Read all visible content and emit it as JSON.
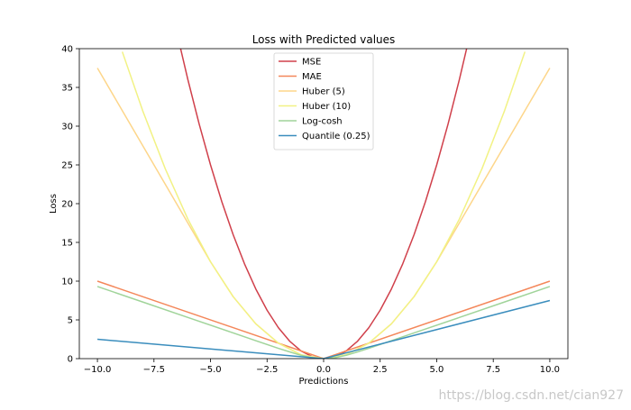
{
  "chart_data": {
    "type": "line",
    "title": "Loss with Predicted values",
    "xlabel": "Predictions",
    "ylabel": "Loss",
    "xlim": [
      -10.8,
      10.8
    ],
    "ylim": [
      0,
      40
    ],
    "xticks": [
      -10.0,
      -7.5,
      -5.0,
      -2.5,
      0.0,
      2.5,
      5.0,
      7.5,
      10.0
    ],
    "xtick_labels": [
      "−10.0",
      "−7.5",
      "−5.0",
      "−2.5",
      "0.0",
      "2.5",
      "5.0",
      "7.5",
      "10.0"
    ],
    "yticks": [
      0,
      5,
      10,
      15,
      20,
      25,
      30,
      35,
      40
    ],
    "ytick_labels": [
      "0",
      "5",
      "10",
      "15",
      "20",
      "25",
      "30",
      "35",
      "40"
    ],
    "grid": false,
    "legend_position": "top-center",
    "series": [
      {
        "name": "MSE",
        "color": "#d0404b",
        "x": [
          -6.4,
          -6.0,
          -5.5,
          -5.0,
          -4.5,
          -4.0,
          -3.5,
          -3.0,
          -2.5,
          -2.0,
          -1.5,
          -1.0,
          -0.5,
          0.0,
          0.5,
          1.0,
          1.5,
          2.0,
          2.5,
          3.0,
          3.5,
          4.0,
          4.5,
          5.0,
          5.5,
          6.0,
          6.4
        ],
        "y": [
          40.96,
          36.0,
          30.25,
          25.0,
          20.25,
          16.0,
          12.25,
          9.0,
          6.25,
          4.0,
          2.25,
          1.0,
          0.25,
          0.0,
          0.25,
          1.0,
          2.25,
          4.0,
          6.25,
          9.0,
          12.25,
          16.0,
          20.25,
          25.0,
          30.25,
          36.0,
          40.96
        ]
      },
      {
        "name": "MAE",
        "color": "#f4875a",
        "x": [
          -10.0,
          0.0,
          10.0
        ],
        "y": [
          10.0,
          0.0,
          10.0
        ]
      },
      {
        "name": "Huber (5)",
        "color": "#fdd68a",
        "x": [
          -10.0,
          -9.0,
          -8.0,
          -7.0,
          -6.0,
          -5.0,
          -4.0,
          -3.0,
          -2.0,
          -1.0,
          0.0,
          1.0,
          2.0,
          3.0,
          4.0,
          5.0,
          6.0,
          7.0,
          8.0,
          9.0,
          10.0
        ],
        "y": [
          37.5,
          32.5,
          27.5,
          22.5,
          17.5,
          12.5,
          8.0,
          4.5,
          2.0,
          0.5,
          0.0,
          0.5,
          2.0,
          4.5,
          8.0,
          12.5,
          17.5,
          22.5,
          27.5,
          32.5,
          37.5
        ]
      },
      {
        "name": "Huber (10)",
        "color": "#f2f284",
        "x": [
          -8.9,
          -8.0,
          -7.0,
          -6.0,
          -5.0,
          -4.0,
          -3.0,
          -2.0,
          -1.0,
          0.0,
          1.0,
          2.0,
          3.0,
          4.0,
          5.0,
          6.0,
          7.0,
          8.0,
          8.9
        ],
        "y": [
          39.6,
          32.0,
          24.5,
          18.0,
          12.5,
          8.0,
          4.5,
          2.0,
          0.5,
          0.0,
          0.5,
          2.0,
          4.5,
          8.0,
          12.5,
          18.0,
          24.5,
          32.0,
          39.6
        ]
      },
      {
        "name": "Log-cosh",
        "color": "#a0d49a",
        "x": [
          -10.0,
          -8.0,
          -6.0,
          -4.0,
          -3.0,
          -2.0,
          -1.5,
          -1.0,
          -0.5,
          0.0,
          0.5,
          1.0,
          1.5,
          2.0,
          3.0,
          4.0,
          6.0,
          8.0,
          10.0
        ],
        "y": [
          9.31,
          7.31,
          5.31,
          3.32,
          2.32,
          1.33,
          0.87,
          0.43,
          0.12,
          0.0,
          0.12,
          0.43,
          0.87,
          1.33,
          2.32,
          3.32,
          5.31,
          7.31,
          9.31
        ]
      },
      {
        "name": "Quantile (0.25)",
        "color": "#3a8dbd",
        "x": [
          -10.0,
          0.0,
          10.0
        ],
        "y": [
          2.5,
          0.0,
          7.5
        ]
      }
    ]
  },
  "watermark": "https://blog.csdn.net/cian927"
}
